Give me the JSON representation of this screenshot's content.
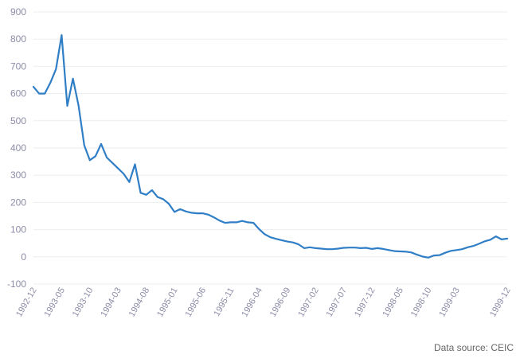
{
  "chart_data": {
    "type": "line",
    "title": "",
    "xlabel": "",
    "ylabel": "",
    "ylim": [
      -100,
      900
    ],
    "yticks": [
      "-100",
      "0",
      "100",
      "200",
      "300",
      "400",
      "500",
      "600",
      "700",
      "800",
      "900"
    ],
    "x_tick_labels": [
      "1992-12",
      "1993-05",
      "1993-10",
      "1994-03",
      "1994-08",
      "1995-01",
      "1995-06",
      "1995-11",
      "1996-04",
      "1996-09",
      "1997-02",
      "1997-07",
      "1997-12",
      "1998-05",
      "1998-10",
      "1999-03",
      "1999-12"
    ],
    "grid": true,
    "series": [
      {
        "color": "#2f7ec6",
        "x": [
          "1992-12",
          "1993-01",
          "1993-02",
          "1993-03",
          "1993-04",
          "1993-05",
          "1993-06",
          "1993-07",
          "1993-08",
          "1993-09",
          "1993-10",
          "1993-11",
          "1993-12",
          "1994-01",
          "1994-02",
          "1994-03",
          "1994-04",
          "1994-05",
          "1994-06",
          "1994-07",
          "1994-08",
          "1994-09",
          "1994-10",
          "1994-11",
          "1994-12",
          "1995-01",
          "1995-02",
          "1995-03",
          "1995-04",
          "1995-05",
          "1995-06",
          "1995-07",
          "1995-08",
          "1995-09",
          "1995-10",
          "1995-11",
          "1995-12",
          "1996-01",
          "1996-02",
          "1996-03",
          "1996-04",
          "1996-05",
          "1996-06",
          "1996-07",
          "1996-08",
          "1996-09",
          "1996-10",
          "1996-11",
          "1996-12",
          "1997-01",
          "1997-02",
          "1997-03",
          "1997-04",
          "1997-05",
          "1997-06",
          "1997-07",
          "1997-08",
          "1997-09",
          "1997-10",
          "1997-11",
          "1997-12",
          "1998-01",
          "1998-02",
          "1998-03",
          "1998-04",
          "1998-05",
          "1998-06",
          "1998-07",
          "1998-08",
          "1998-09",
          "1998-10",
          "1998-11",
          "1998-12",
          "1999-01",
          "1999-02",
          "1999-03",
          "1999-04",
          "1999-05",
          "1999-06",
          "1999-07",
          "1999-08",
          "1999-09",
          "1999-10",
          "1999-11",
          "1999-12"
        ],
        "values": [
          625,
          600,
          600,
          640,
          690,
          815,
          555,
          655,
          555,
          410,
          355,
          370,
          415,
          365,
          345,
          325,
          305,
          275,
          340,
          235,
          228,
          245,
          220,
          212,
          195,
          165,
          175,
          167,
          162,
          160,
          160,
          155,
          145,
          133,
          125,
          127,
          127,
          132,
          127,
          125,
          102,
          83,
          72,
          66,
          61,
          56,
          53,
          46,
          32,
          35,
          32,
          30,
          28,
          28,
          30,
          33,
          34,
          34,
          32,
          33,
          29,
          32,
          29,
          25,
          21,
          20,
          19,
          16,
          8,
          1,
          -3,
          5,
          6,
          15,
          22,
          25,
          28,
          35,
          40,
          48,
          57,
          63,
          75,
          64,
          67
        ]
      }
    ]
  },
  "source_note": "Data source: CEIC"
}
